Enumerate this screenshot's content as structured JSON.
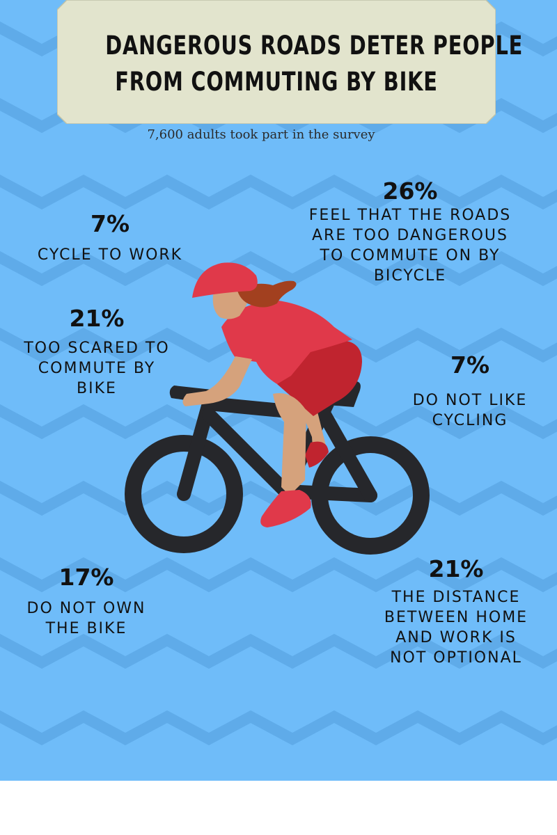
{
  "title": {
    "line1": "DANGEROUS ROADS DETER PEOPLE",
    "line2": "FROM COMMUTING BY BIKE"
  },
  "subtitle": "7,600 adults took part in the survey",
  "stats": {
    "cycle_to_work": {
      "pct": "7%",
      "label": "CYCLE TO WORK"
    },
    "roads_dangerous": {
      "pct": "26%",
      "label": "FEEL THAT THE ROADS\nARE TOO DANGEROUS\nTO COMMUTE ON BY\nBICYCLE"
    },
    "too_scared": {
      "pct": "21%",
      "label": "TOO SCARED TO\nCOMMUTE BY\nBIKE"
    },
    "not_like": {
      "pct": "7%",
      "label": "DO NOT LIKE\nCYCLING"
    },
    "not_own": {
      "pct": "17%",
      "label": "DO NOT OWN\nTHE BIKE"
    },
    "distance": {
      "pct": "21%",
      "label": "THE DISTANCE\nBETWEEN HOME\nAND WORK IS\nNOT OPTIONAL"
    }
  },
  "colors": {
    "background": "#6fbcf9",
    "zigzag": "#5fabe9",
    "banner": "#e2e4cd",
    "banner_edge": "#bfc2a8",
    "text": "#111111",
    "jersey": "#e0394a",
    "shorts": "#c0242f",
    "skin": "#d5a27c",
    "hair": "#a2401f",
    "bike": "#26272b"
  },
  "icons": [
    "cyclist-icon"
  ]
}
